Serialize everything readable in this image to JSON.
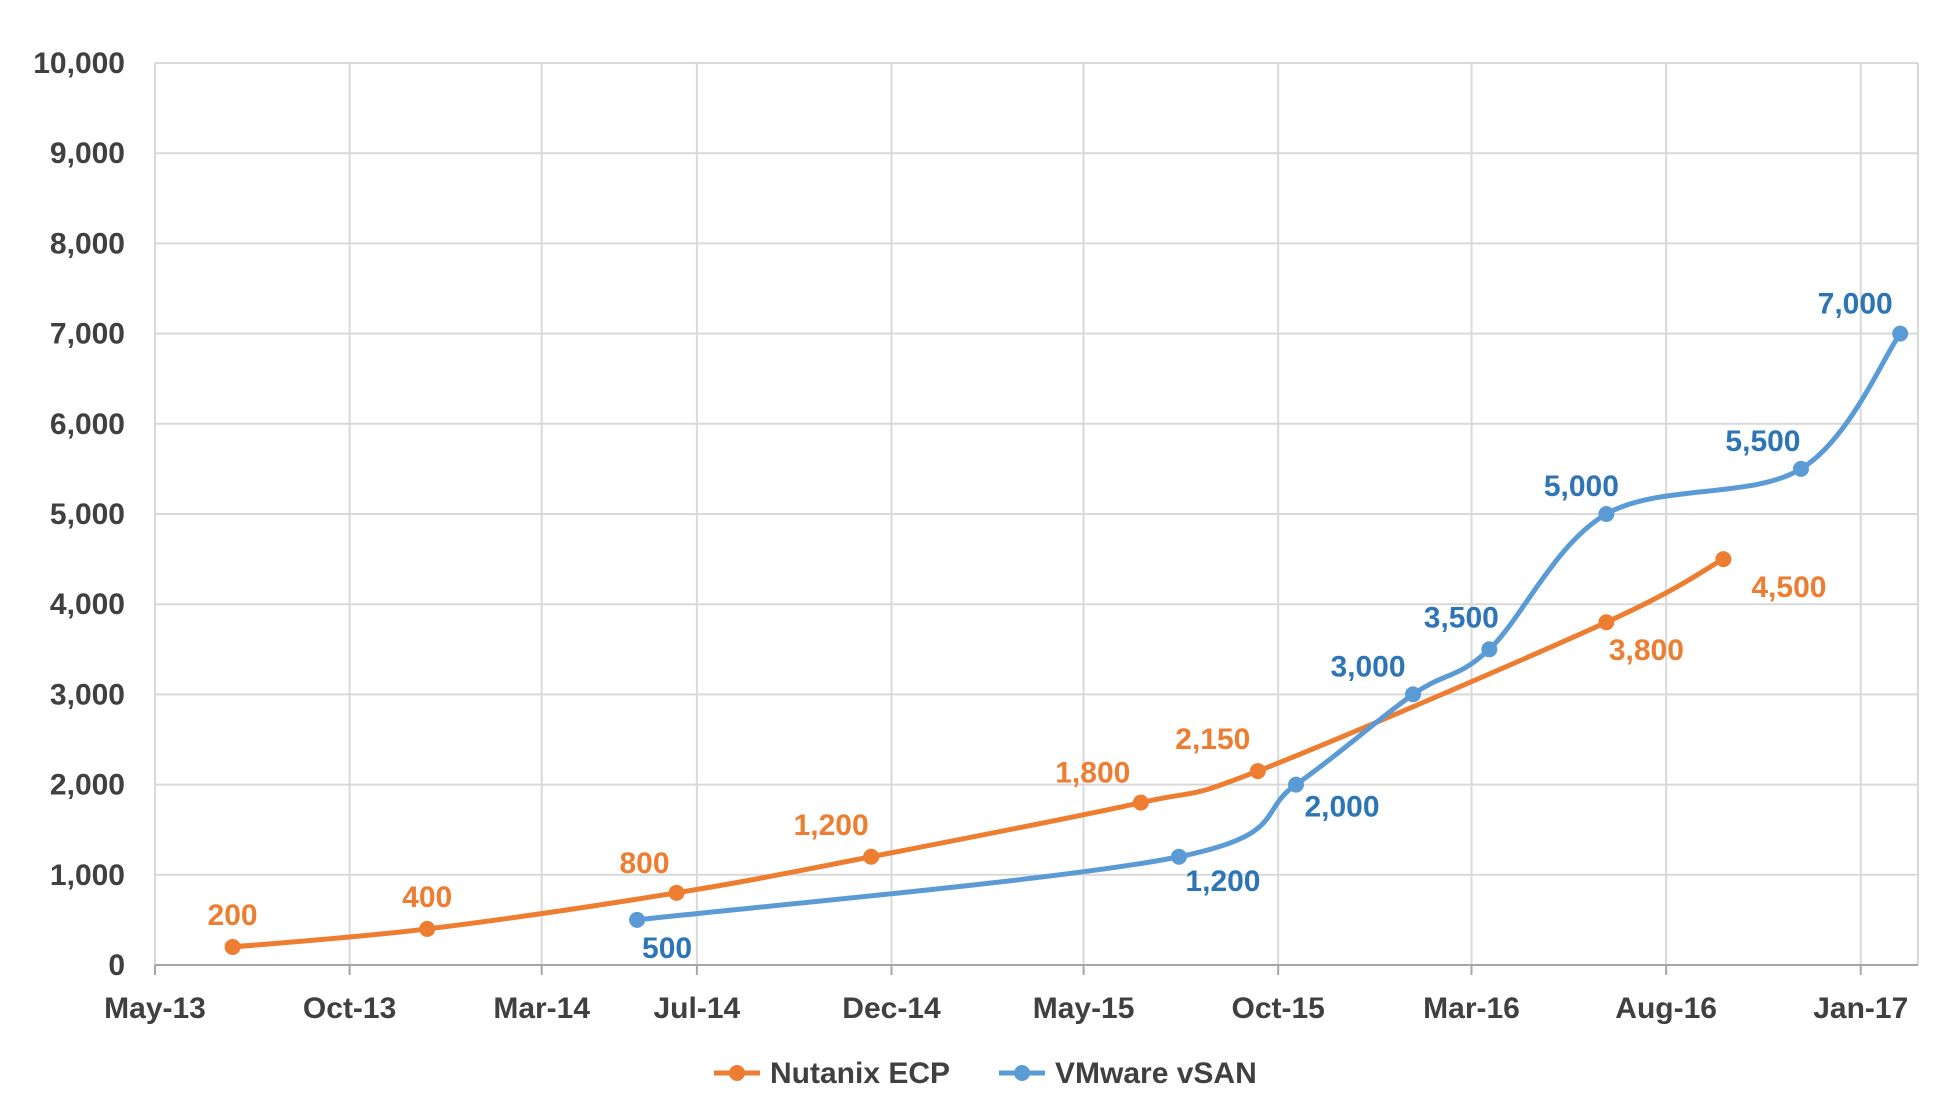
{
  "chart_data": {
    "type": "line",
    "title": "",
    "xlabel": "",
    "ylabel": "",
    "ylim": [
      0,
      10000
    ],
    "yticks": [
      "0",
      "1,000",
      "2,000",
      "3,000",
      "4,000",
      "5,000",
      "6,000",
      "7,000",
      "8,000",
      "9,000",
      "10,000"
    ],
    "xlim": [
      "2013-05-01",
      "2017-02-15"
    ],
    "xticks": [
      "May-13",
      "Oct-13",
      "Mar-14",
      "Jul-14",
      "Dec-14",
      "May-15",
      "Oct-15",
      "Mar-16",
      "Aug-16",
      "Jan-17"
    ],
    "grid": true,
    "legend_position": "bottom",
    "series": [
      {
        "name": "Nutanix ECP",
        "color": "#ed7d31",
        "label_color": "#ed7d31",
        "points": [
          {
            "x": "2013-07-01",
            "y": 200,
            "label": "200"
          },
          {
            "x": "2013-12-01",
            "y": 400,
            "label": "400"
          },
          {
            "x": "2014-06-15",
            "y": 800,
            "label": "800"
          },
          {
            "x": "2014-11-15",
            "y": 1200,
            "label": "1,200"
          },
          {
            "x": "2015-06-15",
            "y": 1800,
            "label": "1,800"
          },
          {
            "x": "2015-09-15",
            "y": 2150,
            "label": "2,150"
          },
          {
            "x": "2016-06-15",
            "y": 3800,
            "label": "3,800"
          },
          {
            "x": "2016-09-15",
            "y": 4500,
            "label": "4,500"
          }
        ]
      },
      {
        "name": "VMware vSAN",
        "color": "#5b9bd5",
        "label_color": "#2e75b6",
        "points": [
          {
            "x": "2014-05-15",
            "y": 500,
            "label": "500"
          },
          {
            "x": "2015-07-15",
            "y": 1200,
            "label": "1,200"
          },
          {
            "x": "2015-10-15",
            "y": 2000,
            "label": "2,000"
          },
          {
            "x": "2016-01-15",
            "y": 3000,
            "label": "3,000"
          },
          {
            "x": "2016-03-15",
            "y": 3500,
            "label": "3,500"
          },
          {
            "x": "2016-06-15",
            "y": 5000,
            "label": "5,000"
          },
          {
            "x": "2016-11-15",
            "y": 5500,
            "label": "5,500"
          },
          {
            "x": "2017-02-01",
            "y": 7000,
            "label": "7,000"
          }
        ]
      }
    ]
  }
}
